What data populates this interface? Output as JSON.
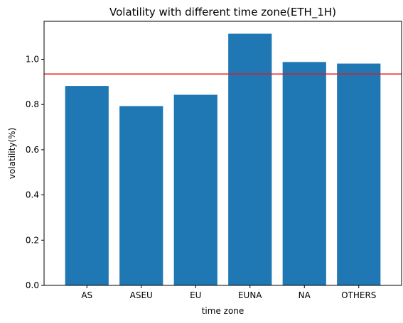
{
  "chart_data": {
    "type": "bar",
    "title": "Volatility with different time zone(ETH_1H)",
    "xlabel": "time zone",
    "ylabel": "volatility(%)",
    "categories": [
      "AS",
      "ASEU",
      "EU",
      "EUNA",
      "NA",
      "OTHERS"
    ],
    "values": [
      0.882,
      0.793,
      0.843,
      1.113,
      0.988,
      0.981
    ],
    "ylim": [
      0,
      1.168
    ],
    "yticks": [
      0.0,
      0.2,
      0.4,
      0.6,
      0.8,
      1.0
    ],
    "ytick_labels": [
      "0.0",
      "0.2",
      "0.4",
      "0.6",
      "0.8",
      "1.0"
    ],
    "reference_line": {
      "y": 0.935,
      "color": "#e41a1c"
    },
    "bar_color": "#1f77b4",
    "grid": false,
    "legend": "none"
  }
}
